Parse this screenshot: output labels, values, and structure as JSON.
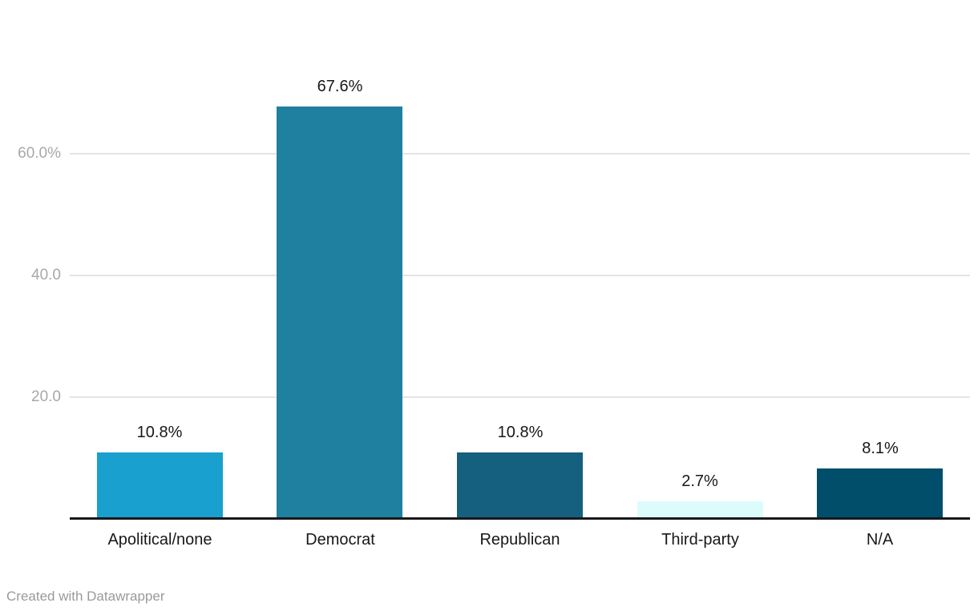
{
  "footer": {
    "credit": "Created with Datawrapper"
  },
  "colors": {
    "axis_line": "#18181a",
    "gridline": "#e4e4e4",
    "tick_label": "#a8a8a8",
    "text": "#18181a",
    "credit_text": "#9a9a9a",
    "background": "#ffffff"
  },
  "chart_data": {
    "type": "bar",
    "title": "",
    "xlabel": "",
    "ylabel": "",
    "categories": [
      "Apolitical/none",
      "Democrat",
      "Republican",
      "Third-party",
      "N/A"
    ],
    "values": [
      10.8,
      67.6,
      10.8,
      2.7,
      8.1
    ],
    "value_labels": [
      "10.8%",
      "67.6%",
      "10.8%",
      "2.7%",
      "8.1%"
    ],
    "bar_colors": [
      "#1aa0cf",
      "#1f80a0",
      "#15607f",
      "#dcfcfc",
      "#014e6b"
    ],
    "y_ticks": [
      {
        "value": 20,
        "label": "20.0"
      },
      {
        "value": 40,
        "label": "40.0"
      },
      {
        "value": 60,
        "label": "60.0%"
      }
    ],
    "ylim": [
      0,
      72
    ],
    "grid": true,
    "legend_position": "none",
    "orientation": "vertical"
  }
}
